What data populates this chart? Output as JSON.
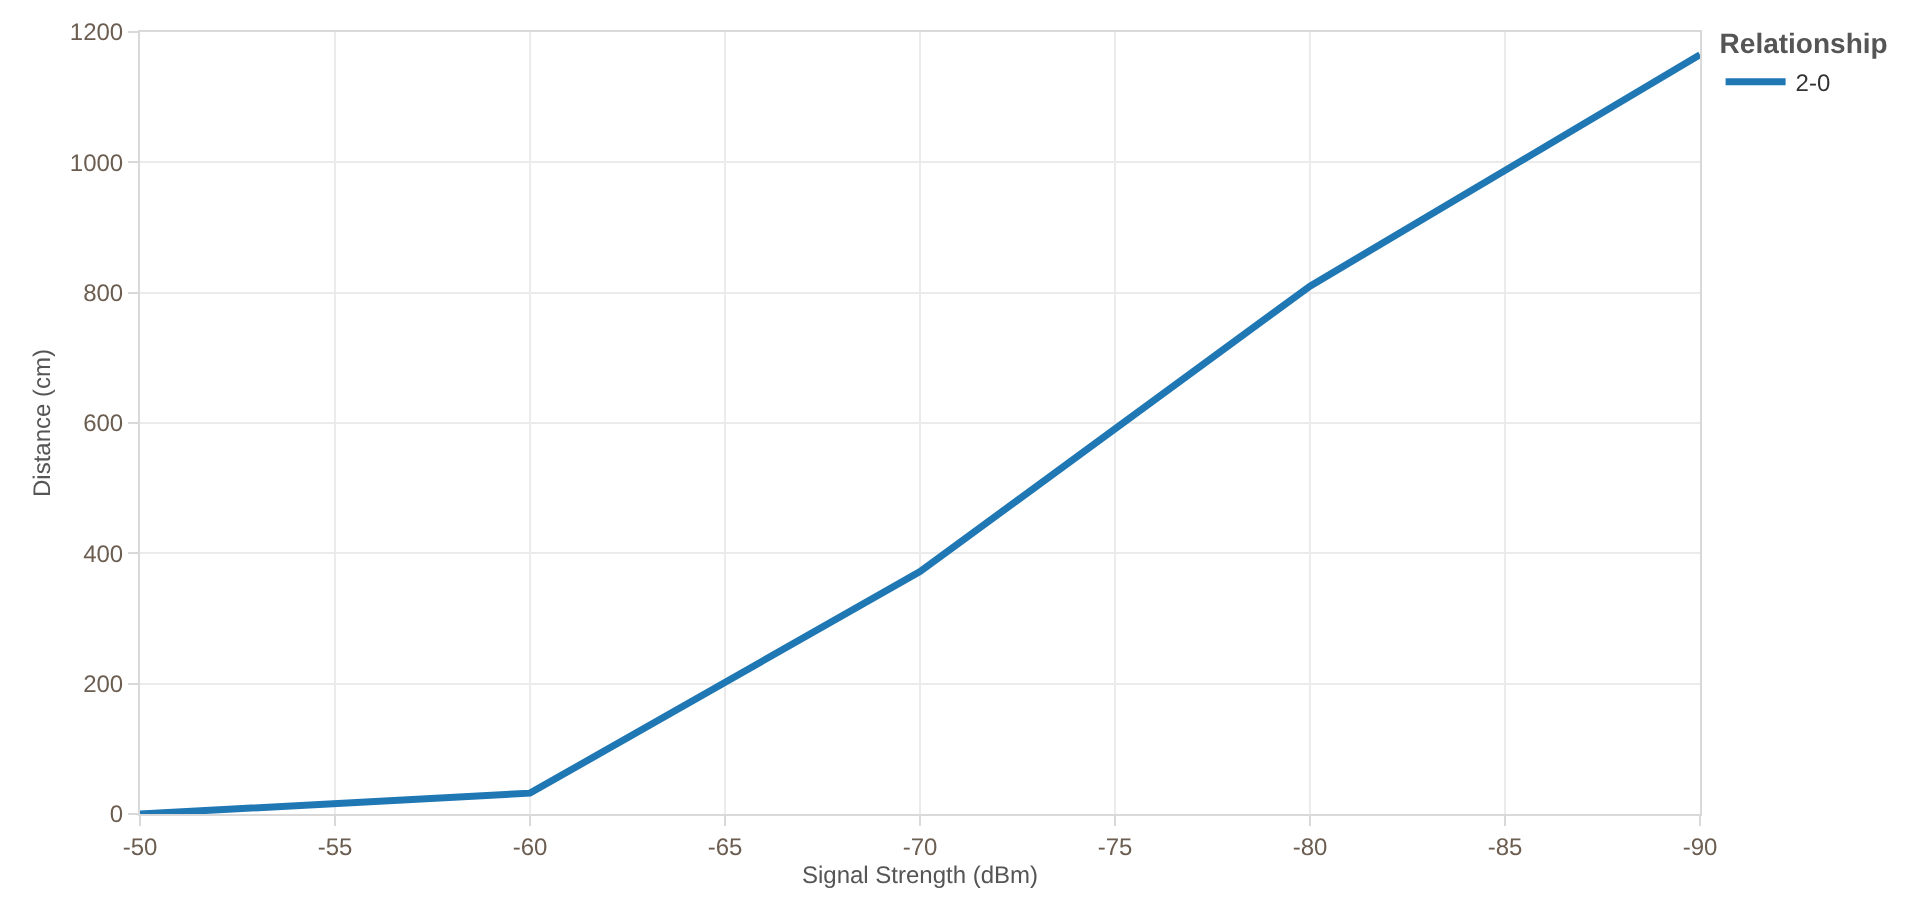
{
  "chart_data": {
    "type": "line",
    "xlabel": "Signal Strength (dBm)",
    "ylabel": "Distance (cm)",
    "legend_title": "Relationship",
    "x": [
      -50,
      -60,
      -70,
      -80,
      -90
    ],
    "series": [
      {
        "name": "2-0",
        "color": "#1f77b4",
        "values": [
          0,
          32,
          372,
          810,
          1165
        ]
      }
    ],
    "xlim": [
      -50,
      -90
    ],
    "xticks": [
      -50,
      -55,
      -60,
      -65,
      -70,
      -75,
      -80,
      -85,
      -90
    ],
    "ylim": [
      0,
      1200
    ],
    "yticks": [
      0,
      200,
      400,
      600,
      800,
      1000,
      1200
    ],
    "grid": true,
    "legend": "top right",
    "marker": "none",
    "line_style": "solid"
  }
}
